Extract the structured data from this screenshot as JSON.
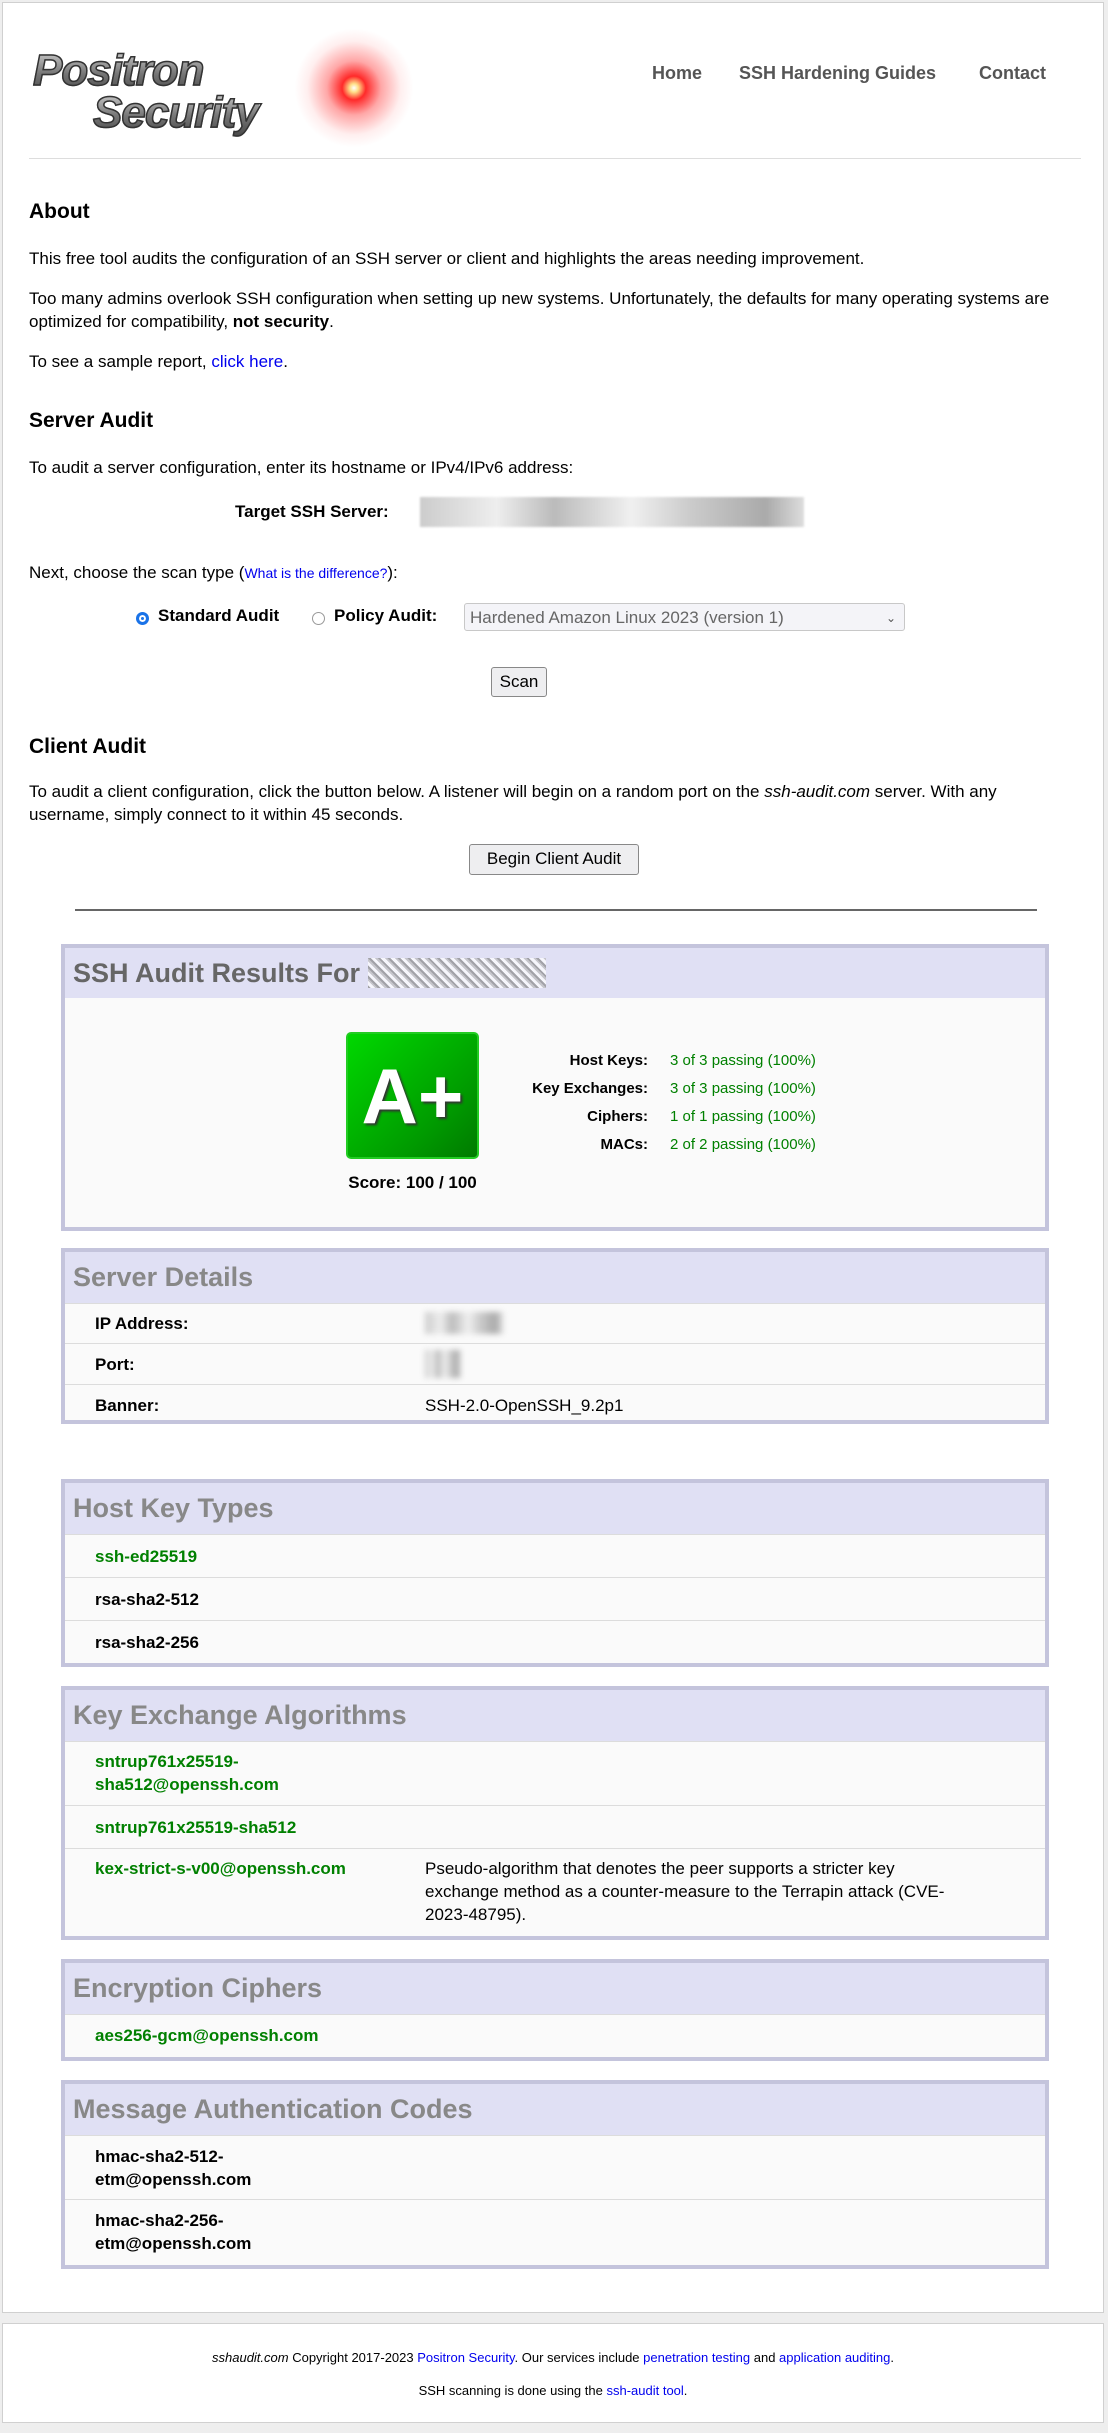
{
  "logo": {
    "line1": "Positron",
    "line2": "Security"
  },
  "nav": [
    {
      "label": "Home"
    },
    {
      "label": "SSH Hardening Guides"
    },
    {
      "label": "Contact"
    }
  ],
  "about": {
    "title": "About",
    "p1": "This free tool audits the configuration of an SSH server or client and highlights the areas needing improvement.",
    "p2_pre": "Too many admins overlook SSH configuration when setting up new systems. Unfortunately, the defaults for many operating systems are optimized for compatibility, ",
    "p2_bold": "not security",
    "p2_post": ".",
    "p3_pre": "To see a sample report, ",
    "p3_link": "click here",
    "p3_post": "."
  },
  "server_audit": {
    "title": "Server Audit",
    "intro": "To audit a server configuration, enter its hostname or IPv4/IPv6 address:",
    "target_label": "Target SSH Server:",
    "scan_type_pre": "Next, choose the scan type (",
    "scan_type_link": "What is the difference?",
    "scan_type_post": "):",
    "standard_label": "Standard Audit",
    "standard_checked": true,
    "policy_label": "Policy Audit:",
    "policy_checked": false,
    "policy_selected": "Hardened Amazon Linux 2023 (version 1)",
    "scan_button": "Scan"
  },
  "client_audit": {
    "title": "Client Audit",
    "text_pre": "To audit a client configuration, click the button below. A listener will begin on a random port on the ",
    "text_em": "ssh-audit.com",
    "text_post": " server. With any username, simply connect to it within 45 seconds.",
    "button": "Begin Client Audit"
  },
  "results": {
    "title": "SSH Audit Results For",
    "grade": "A+",
    "grade_color": "#00b000",
    "score": "Score: 100 / 100",
    "stats": [
      {
        "label": "Host Keys:",
        "value": "3 of 3 passing (100%)"
      },
      {
        "label": "Key Exchanges:",
        "value": "3 of 3 passing (100%)"
      },
      {
        "label": "Ciphers:",
        "value": "1 of 1 passing (100%)"
      },
      {
        "label": "MACs:",
        "value": "2 of 2 passing (100%)"
      }
    ]
  },
  "server_details": {
    "title": "Server Details",
    "rows": [
      {
        "label": "IP Address:"
      },
      {
        "label": "Port:"
      },
      {
        "label": "Banner:",
        "value": "SSH-2.0-OpenSSH_9.2p1"
      }
    ]
  },
  "host_keys": {
    "title": "Host Key Types",
    "items": [
      {
        "name": "ssh-ed25519",
        "status": "good"
      },
      {
        "name": "rsa-sha2-512",
        "status": "neutral"
      },
      {
        "name": "rsa-sha2-256",
        "status": "neutral"
      }
    ]
  },
  "kex": {
    "title": "Key Exchange Algorithms",
    "items": [
      {
        "name1": "sntrup761x25519-",
        "name2": "sha512@openssh.com",
        "status": "good"
      },
      {
        "name": "sntrup761x25519-sha512",
        "status": "good"
      },
      {
        "name": "kex-strict-s-v00@openssh.com",
        "status": "good",
        "note": "Pseudo-algorithm that denotes the peer supports a stricter key exchange method as a counter-measure to the Terrapin attack (CVE-2023-48795)."
      }
    ]
  },
  "ciphers": {
    "title": "Encryption Ciphers",
    "items": [
      {
        "name": "aes256-gcm@openssh.com",
        "status": "good"
      }
    ]
  },
  "macs": {
    "title": "Message Authentication Codes",
    "items": [
      {
        "name1": "hmac-sha2-512-",
        "name2": "etm@openssh.com",
        "status": "neutral"
      },
      {
        "name1": "hmac-sha2-256-",
        "name2": "etm@openssh.com",
        "status": "neutral"
      }
    ]
  },
  "footer": {
    "site": "sshaudit.com",
    "copyright": " Copyright 2017-2023 ",
    "company_link": "Positron Security",
    "services_pre": ". Our services include ",
    "pentest_link": "penetration testing",
    "and": " and ",
    "appaudit_link": "application auditing",
    "end": ".",
    "line2_pre": "SSH scanning is done using the ",
    "tool_link": "ssh-audit tool",
    "line2_post": "."
  }
}
